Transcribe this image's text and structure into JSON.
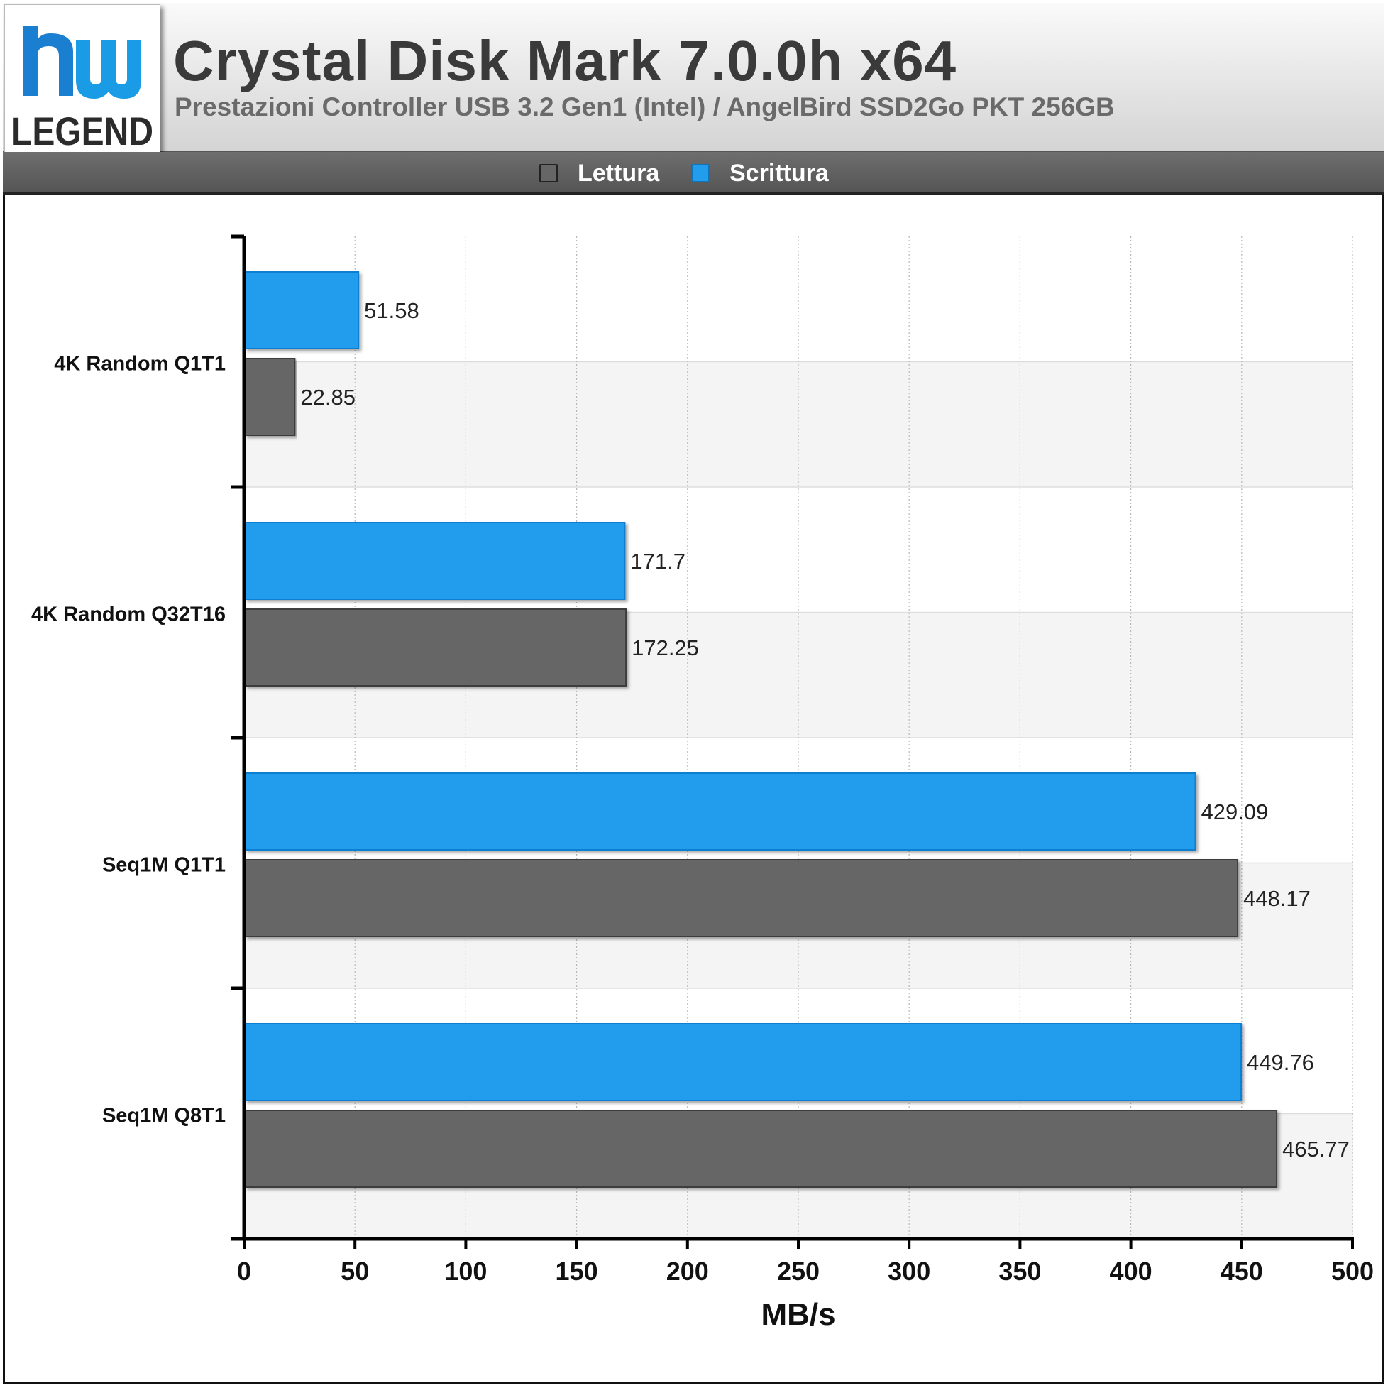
{
  "header": {
    "title": "Crystal Disk Mark 7.0.0h x64",
    "subtitle": "Prestazioni Controller USB 3.2 Gen1 (Intel) / AngelBird SSD2Go PKT 256GB",
    "logo_text_top": "hw",
    "logo_text_bottom": "LEGEND"
  },
  "legend": [
    {
      "label": "Lettura",
      "color": "#666666"
    },
    {
      "label": "Scrittura",
      "color": "#229ded"
    }
  ],
  "chart_data": {
    "type": "bar",
    "orientation": "horizontal",
    "categories": [
      "4K Random Q1T1",
      "4K Random Q32T16",
      "Seq1M Q1T1",
      "Seq1M Q8T1"
    ],
    "series": [
      {
        "name": "Scrittura",
        "color": "#229ded",
        "values": [
          51.58,
          171.7,
          429.09,
          449.76
        ],
        "labels": [
          "51.58",
          "171.7",
          "429.09",
          "449.76"
        ]
      },
      {
        "name": "Lettura",
        "color": "#666666",
        "values": [
          22.85,
          172.25,
          448.17,
          465.77
        ],
        "labels": [
          "22.85",
          "172.25",
          "448.17",
          "465.77"
        ]
      }
    ],
    "xlabel": "MB/s",
    "ylabel": "",
    "xlim": [
      0,
      500
    ],
    "xticks": [
      0,
      50,
      100,
      150,
      200,
      250,
      300,
      350,
      400,
      450,
      500
    ],
    "grid": true,
    "legend_position": "top"
  }
}
